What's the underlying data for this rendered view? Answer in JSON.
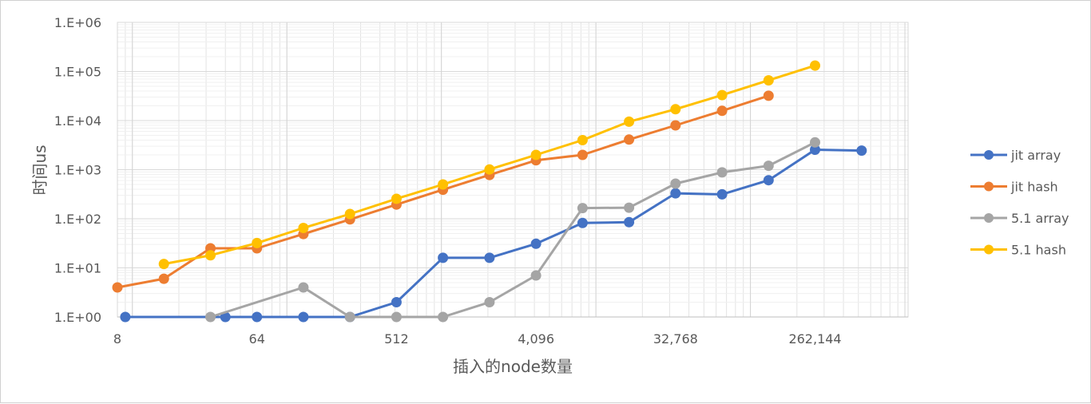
{
  "chart_data": {
    "type": "line",
    "xlabel": "插入的node数量",
    "ylabel": "时间us",
    "x_scale": "log2",
    "y_scale": "log10",
    "xlim": [
      8,
      1048576
    ],
    "ylim": [
      1,
      1000000
    ],
    "x_ticks": [
      {
        "value": 8,
        "label": "8"
      },
      {
        "value": 64,
        "label": "64"
      },
      {
        "value": 512,
        "label": "512"
      },
      {
        "value": 4096,
        "label": "4,096"
      },
      {
        "value": 32768,
        "label": "32,768"
      },
      {
        "value": 262144,
        "label": "262,144"
      }
    ],
    "y_ticks": [
      {
        "value": 1,
        "label": "1.E+00"
      },
      {
        "value": 10,
        "label": "1.E+01"
      },
      {
        "value": 100,
        "label": "1.E+02"
      },
      {
        "value": 1000,
        "label": "1.E+03"
      },
      {
        "value": 10000,
        "label": "1.E+04"
      },
      {
        "value": 100000,
        "label": "1.E+05"
      },
      {
        "value": 1000000,
        "label": "1.E+06"
      }
    ],
    "grid": true,
    "legend_position": "right",
    "series": [
      {
        "name": "jit array",
        "color": "#4472C4",
        "points": [
          [
            9,
            1
          ],
          [
            40,
            1
          ],
          [
            64,
            1
          ],
          [
            128,
            1
          ],
          [
            256,
            1
          ],
          [
            512,
            2
          ],
          [
            1024,
            16
          ],
          [
            2048,
            16
          ],
          [
            4096,
            31
          ],
          [
            8192,
            82
          ],
          [
            16384,
            85
          ],
          [
            32768,
            330
          ],
          [
            65536,
            315
          ],
          [
            131072,
            610
          ],
          [
            262144,
            2550
          ],
          [
            524288,
            2450
          ]
        ]
      },
      {
        "name": "jit hash",
        "color": "#ED7D31",
        "points": [
          [
            8,
            4
          ],
          [
            16,
            6
          ],
          [
            32,
            25
          ],
          [
            64,
            25
          ],
          [
            128,
            49
          ],
          [
            256,
            97
          ],
          [
            512,
            195
          ],
          [
            1024,
            390
          ],
          [
            2048,
            780
          ],
          [
            4096,
            1550
          ],
          [
            8192,
            2000
          ],
          [
            16384,
            4100
          ],
          [
            32768,
            8000
          ],
          [
            65536,
            15800
          ],
          [
            131072,
            32000
          ]
        ]
      },
      {
        "name": "5.1 array",
        "color": "#A5A5A5",
        "points": [
          [
            32,
            1
          ],
          [
            128,
            4
          ],
          [
            256,
            1
          ],
          [
            512,
            1
          ],
          [
            1024,
            1
          ],
          [
            2048,
            2
          ],
          [
            4096,
            7
          ],
          [
            8192,
            165
          ],
          [
            16384,
            168
          ],
          [
            32768,
            520
          ],
          [
            65536,
            880
          ],
          [
            131072,
            1200
          ],
          [
            262144,
            3600
          ]
        ]
      },
      {
        "name": "5.1 hash",
        "color": "#FFC000",
        "points": [
          [
            16,
            12
          ],
          [
            32,
            18
          ],
          [
            64,
            32
          ],
          [
            128,
            65
          ],
          [
            256,
            125
          ],
          [
            512,
            255
          ],
          [
            1024,
            500
          ],
          [
            2048,
            1010
          ],
          [
            4096,
            2000
          ],
          [
            8192,
            4000
          ],
          [
            16384,
            9500
          ],
          [
            32768,
            17000
          ],
          [
            65536,
            33000
          ],
          [
            131072,
            66000
          ],
          [
            262144,
            132000
          ]
        ]
      }
    ]
  }
}
